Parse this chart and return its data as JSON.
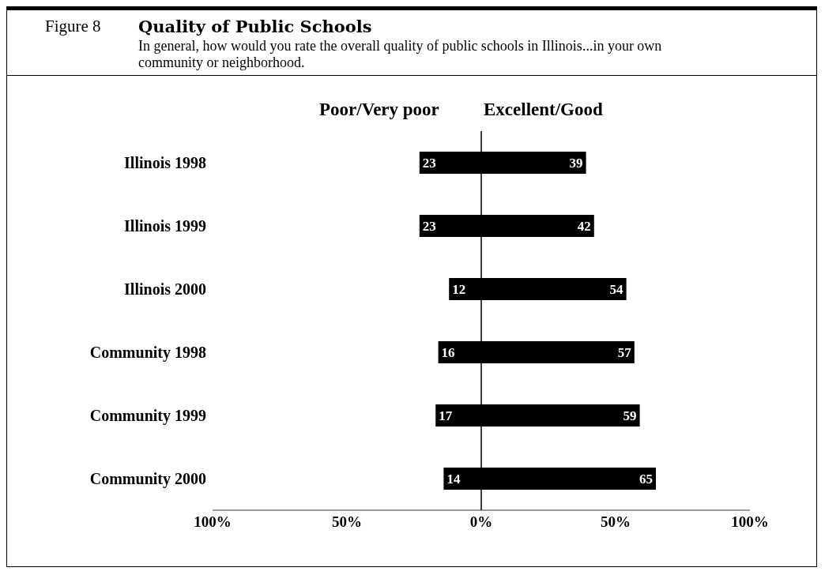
{
  "chart_data": {
    "type": "bar",
    "orientation": "horizontal",
    "title": "Quality of Public Schools",
    "subtitle": "In general, how would you rate the overall quality of public schools in Illinois...in your own community or neighborhood.",
    "annotations": [
      "Figure 8"
    ],
    "categories": [
      "Illinois 1998",
      "Illinois 1999",
      "Illinois 2000",
      "Community 1998",
      "Community 1999",
      "Community 2000"
    ],
    "series": [
      {
        "name": "Poor/Very poor",
        "color": "#000000",
        "values": [
          23,
          23,
          12,
          16,
          17,
          14
        ],
        "base": [
          -23,
          -23,
          -12,
          -16,
          -17,
          -14
        ]
      },
      {
        "name": "Excellent/Good",
        "color": "#000000",
        "values": [
          39,
          42,
          54,
          57,
          59,
          65
        ]
      }
    ],
    "data_labels": true,
    "xlim": [
      -100,
      100
    ],
    "xticks": [
      {
        "value": -100,
        "label": "100%"
      },
      {
        "value": -50,
        "label": "50%"
      },
      {
        "value": 0,
        "label": "0%"
      },
      {
        "value": 50,
        "label": "50%"
      },
      {
        "value": 100,
        "label": "100%"
      }
    ],
    "ref_lines": [
      {
        "axis": "x",
        "value": 0,
        "color": "#000000"
      }
    ],
    "legend": "top",
    "grid": false
  }
}
